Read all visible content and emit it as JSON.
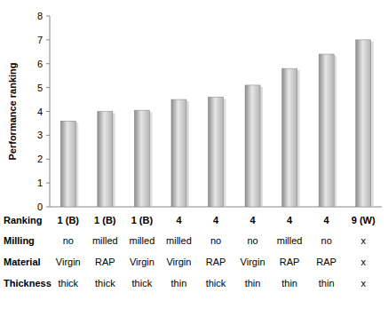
{
  "chart_data": {
    "type": "bar",
    "y_label": "Performance ranking",
    "categories": [
      null,
      null,
      null,
      null,
      null,
      null,
      null,
      null,
      null
    ],
    "values": [
      3.6,
      4.0,
      4.05,
      4.5,
      4.6,
      5.1,
      5.8,
      6.4,
      7.0
    ],
    "color": "#b4b4b4",
    "ylim": [
      0,
      8
    ],
    "yticks": [
      0,
      1,
      2,
      3,
      4,
      5,
      6,
      7,
      8
    ],
    "grid": false,
    "table": {
      "rows": [
        {
          "label": "Ranking",
          "cells": [
            "1 (B)",
            "1 (B)",
            "1 (B)",
            "4",
            "4",
            "4",
            "4",
            "4",
            "9 (W)"
          ]
        },
        {
          "label": "Milling",
          "cells": [
            "no",
            "milled",
            "milled",
            "milled",
            "no",
            "no",
            "milled",
            "no",
            "x"
          ]
        },
        {
          "label": "Material",
          "cells": [
            "Virgin",
            "RAP",
            "Virgin",
            "Virgin",
            "RAP",
            "Virgin",
            "RAP",
            "RAP",
            "x"
          ]
        },
        {
          "label": "Thickness",
          "cells": [
            "thick",
            "thick",
            "thick",
            "thin",
            "thick",
            "thin",
            "thin",
            "thin",
            "x"
          ]
        }
      ]
    }
  }
}
